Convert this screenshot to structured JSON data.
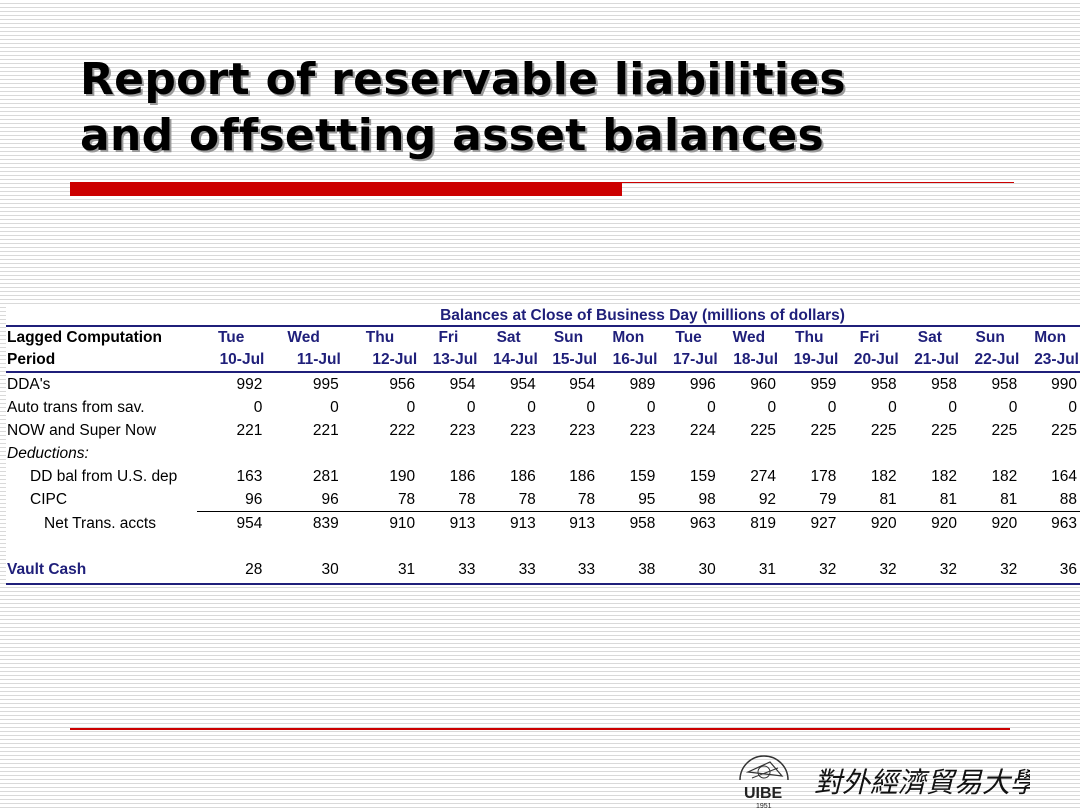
{
  "title": {
    "line1": "Report of reservable liabilities",
    "line2": "and offsetting asset balances"
  },
  "table": {
    "caption": "Balances at Close of Business Day (millions of dollars)",
    "header_label_1": "Lagged Computation",
    "header_label_2": "Period",
    "days": [
      "Tue",
      "Wed",
      "Thu",
      "Fri",
      "Sat",
      "Sun",
      "Mon",
      "Tue",
      "Wed",
      "Thu",
      "Fri",
      "Sat",
      "Sun",
      "Mon"
    ],
    "dates": [
      "10-Jul",
      "11-Jul",
      "12-Jul",
      "13-Jul",
      "14-Jul",
      "15-Jul",
      "16-Jul",
      "17-Jul",
      "18-Jul",
      "19-Jul",
      "20-Jul",
      "21-Jul",
      "22-Jul",
      "23-Jul"
    ],
    "rows": [
      {
        "label": "DDA's",
        "values": [
          "992",
          "995",
          "956",
          "954",
          "954",
          "954",
          "989",
          "996",
          "960",
          "959",
          "958",
          "958",
          "958",
          "990"
        ]
      },
      {
        "label": "Auto trans from sav.",
        "values": [
          "0",
          "0",
          "0",
          "0",
          "0",
          "0",
          "0",
          "0",
          "0",
          "0",
          "0",
          "0",
          "0",
          "0"
        ]
      },
      {
        "label": "NOW and Super Now",
        "values": [
          "221",
          "221",
          "222",
          "223",
          "223",
          "223",
          "223",
          "224",
          "225",
          "225",
          "225",
          "225",
          "225",
          "225"
        ]
      },
      {
        "label": "Deductions:",
        "values": []
      },
      {
        "label": "DD bal from U.S. dep",
        "values": [
          "163",
          "281",
          "190",
          "186",
          "186",
          "186",
          "159",
          "159",
          "274",
          "178",
          "182",
          "182",
          "182",
          "164"
        ]
      },
      {
        "label": "CIPC",
        "values": [
          "96",
          "96",
          "78",
          "78",
          "78",
          "78",
          "95",
          "98",
          "92",
          "79",
          "81",
          "81",
          "81",
          "88"
        ]
      },
      {
        "label": "Net Trans. accts",
        "values": [
          "954",
          "839",
          "910",
          "913",
          "913",
          "913",
          "958",
          "963",
          "819",
          "927",
          "920",
          "920",
          "920",
          "963"
        ]
      },
      {
        "label": "Vault Cash",
        "values": [
          "28",
          "30",
          "31",
          "33",
          "33",
          "33",
          "38",
          "30",
          "31",
          "32",
          "32",
          "32",
          "32",
          "36"
        ]
      }
    ]
  },
  "logo": {
    "text": "UIBE",
    "year": "1951",
    "chinese": "對外經濟貿易大學"
  },
  "colors": {
    "accent_red": "#cc0000",
    "header_navy": "#1f1f7a"
  }
}
